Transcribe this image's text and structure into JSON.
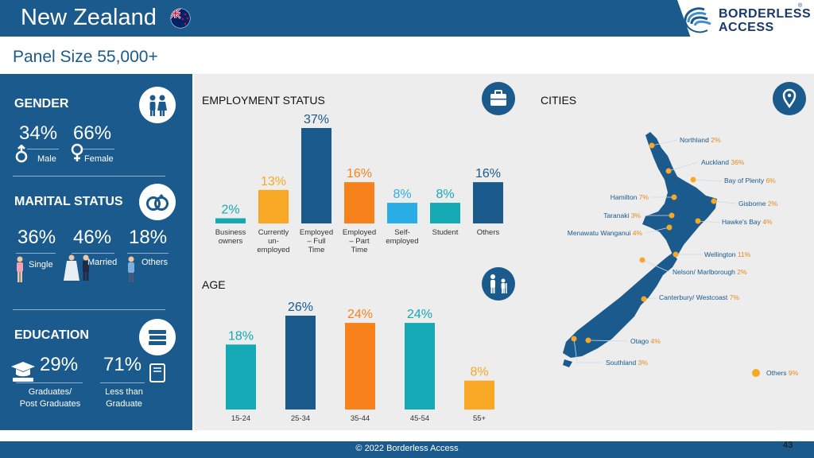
{
  "header": {
    "title": "New Zealand",
    "panel_size": "Panel Size 55,000+"
  },
  "logo": {
    "line1": "BORDERLESS",
    "line2": "ACCESS",
    "mark": "®"
  },
  "gender": {
    "title": "GENDER",
    "items": [
      {
        "pct": "34%",
        "label": "Male"
      },
      {
        "pct": "66%",
        "label": "Female"
      }
    ]
  },
  "marital": {
    "title": "MARITAL STATUS",
    "items": [
      {
        "pct": "36%",
        "label": "Single"
      },
      {
        "pct": "46%",
        "label": "Married"
      },
      {
        "pct": "18%",
        "label": "Others"
      }
    ]
  },
  "education": {
    "title": "EDUCATION",
    "items": [
      {
        "pct": "29%",
        "label1": "Graduates/",
        "label2": "Post Graduates"
      },
      {
        "pct": "71%",
        "label1": "Less than",
        "label2": "Graduate"
      }
    ]
  },
  "employment_title": "EMPLOYMENT STATUS",
  "age_title": "AGE",
  "cities_title": "CITIES",
  "colors": {
    "navy": "#1a5a8c",
    "teal": "#14a9b5",
    "orange": "#f7821b",
    "amber": "#f9a825",
    "sky": "#29aee8",
    "city_label": "#1a5a8c",
    "city_pct": "#e88a1a",
    "dot": "#f9a825"
  },
  "chart_data": [
    {
      "type": "bar",
      "title": "EMPLOYMENT STATUS",
      "categories": [
        [
          "Business",
          "owners"
        ],
        [
          "Currently",
          "un-",
          "employed"
        ],
        [
          "Employed",
          "– Full",
          "Time"
        ],
        [
          "Employed",
          "– Part",
          "Time"
        ],
        [
          "Self-",
          "employed"
        ],
        [
          "Student"
        ],
        [
          "Others"
        ]
      ],
      "values": [
        2,
        13,
        37,
        16,
        8,
        8,
        16
      ],
      "labels": [
        "2%",
        "13%",
        "37%",
        "16%",
        "8%",
        "8%",
        "16%"
      ],
      "colors": [
        "#14a9b5",
        "#f9a825",
        "#1a5a8c",
        "#f7821b",
        "#29aee8",
        "#14a9b5",
        "#1a5a8c"
      ],
      "ylim": [
        0,
        37
      ]
    },
    {
      "type": "bar",
      "title": "AGE",
      "categories": [
        "15-24",
        "25-34",
        "35-44",
        "45-54",
        "55+"
      ],
      "values": [
        18,
        26,
        24,
        24,
        8
      ],
      "labels": [
        "18%",
        "26%",
        "24%",
        "24%",
        "8%"
      ],
      "colors": [
        "#14a9b5",
        "#1a5a8c",
        "#f7821b",
        "#14a9b5",
        "#f9a825"
      ],
      "ylim": [
        0,
        26
      ]
    }
  ],
  "cities": [
    {
      "name": "Northland",
      "pct": "2%"
    },
    {
      "name": "Auckland",
      "pct": "36%"
    },
    {
      "name": "Bay of Plenty",
      "pct": "6%"
    },
    {
      "name": "Hamilton",
      "pct": "7%"
    },
    {
      "name": "Gisborne",
      "pct": "2%"
    },
    {
      "name": "Taranaki",
      "pct": "3%"
    },
    {
      "name": "Hawke's Bay",
      "pct": "4%"
    },
    {
      "name": "Menawatu Wanganui",
      "pct": "4%"
    },
    {
      "name": "Wellington",
      "pct": "11%"
    },
    {
      "name": "Nelson/ Marlborough",
      "pct": "2%"
    },
    {
      "name": "Canterbury/ Westcoast",
      "pct": "7%"
    },
    {
      "name": "Otago",
      "pct": "4%"
    },
    {
      "name": "Southland",
      "pct": "3%"
    },
    {
      "name": "Others",
      "pct": "9%"
    }
  ],
  "footer": {
    "copyright": "© 2022 Borderless Access",
    "page": "43"
  }
}
